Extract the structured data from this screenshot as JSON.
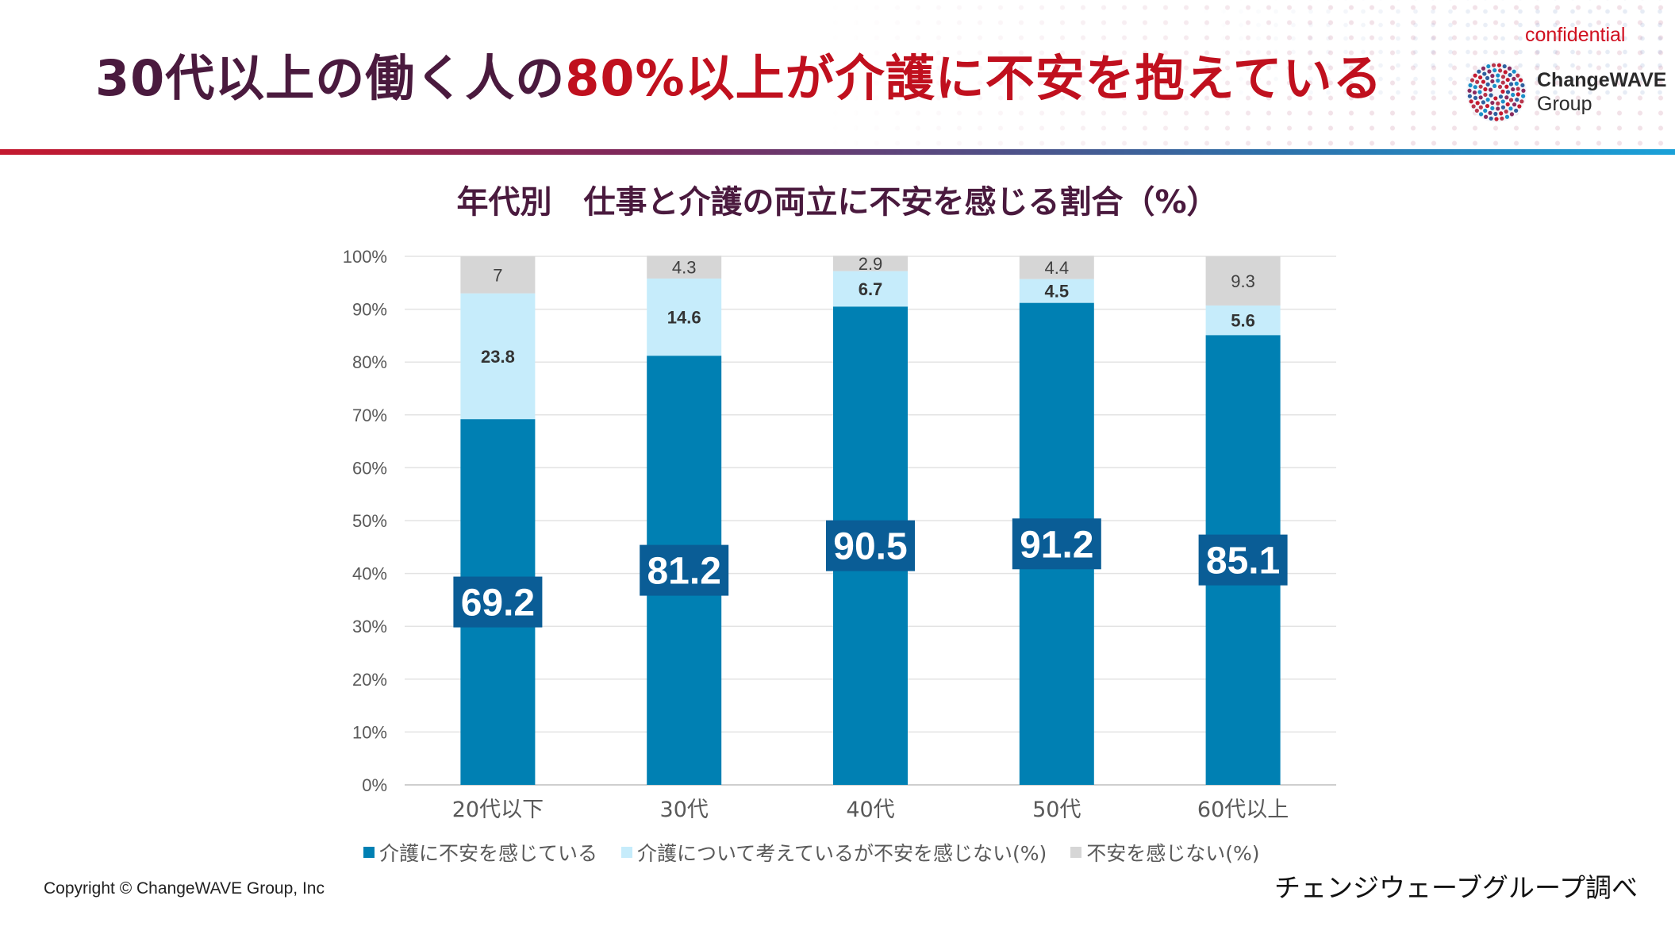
{
  "header": {
    "headline_part1": "30代以上の働く人の",
    "headline_part2": "80%以上が介護に不安を抱えている",
    "confidential": "confidential",
    "logo_name": "ChangeWAVE",
    "logo_sub": "Group"
  },
  "colors": {
    "headline_dark": "#4a1a3e",
    "headline_accent": "#c0101e",
    "series_anxious": "#0080b3",
    "series_considering": "#c6ecfb",
    "series_not_anxious": "#d6d6d6",
    "label_box": "#0a5d96"
  },
  "chart_data": {
    "type": "bar",
    "stacked": true,
    "normalized_percent": true,
    "title": "年代別　仕事と介護の両立に不安を感じる割合（%）",
    "categories": [
      "20代以下",
      "30代",
      "40代",
      "50代",
      "60代以上"
    ],
    "series": [
      {
        "name": "介護に不安を感じている",
        "values": [
          69.2,
          81.2,
          90.5,
          91.2,
          85.1
        ]
      },
      {
        "name": "介護について考えているが不安を感じない(%)",
        "values": [
          23.8,
          14.6,
          6.7,
          4.5,
          5.6
        ]
      },
      {
        "name": "不安を感じない(%)",
        "values": [
          7,
          4.3,
          2.9,
          4.4,
          9.3
        ]
      }
    ],
    "y_ticks": [
      "0%",
      "10%",
      "20%",
      "30%",
      "40%",
      "50%",
      "60%",
      "70%",
      "80%",
      "90%",
      "100%"
    ],
    "ylim": [
      0,
      100
    ],
    "grid": true,
    "legend_position": "bottom"
  },
  "footer": {
    "copyright": "Copyright © ChangeWAVE Group, Inc",
    "source": "チェンジウェーブグループ調べ"
  }
}
